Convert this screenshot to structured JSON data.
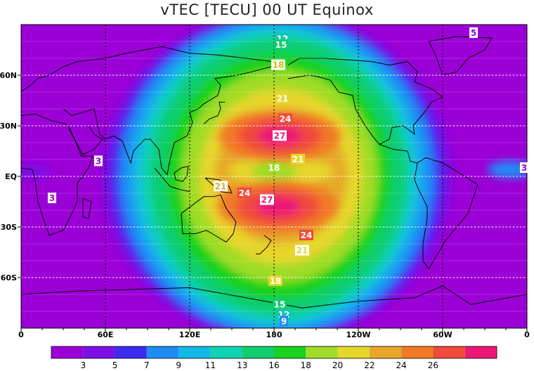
{
  "title": "vTEC [TECU] 00 UT Equinox",
  "axes": {
    "x_ticks": [
      "0",
      "60E",
      "120E",
      "180",
      "120W",
      "60W",
      "0"
    ],
    "y_ticks": [
      "60N",
      "30N",
      "EQ",
      "30S",
      "60S"
    ]
  },
  "colorbar": {
    "colors": [
      "#9b00d6",
      "#7a10e4",
      "#3b2cf0",
      "#1f8cf5",
      "#12b8e6",
      "#10d2b4",
      "#10cd70",
      "#18d21e",
      "#a0dc28",
      "#e6d62c",
      "#e6a82a",
      "#f07a28",
      "#f04a3a",
      "#ec1876"
    ],
    "labels": [
      "3",
      "5",
      "7",
      "9",
      "11",
      "13",
      "16",
      "18",
      "20",
      "22",
      "24",
      "26"
    ]
  },
  "contour_labels": [
    {
      "text": "12",
      "lon": 186,
      "lat": 81.5,
      "bg": "#10c8b0",
      "fg": "#ffffff"
    },
    {
      "text": "15",
      "lon": 185,
      "lat": 78,
      "bg": "#10cd70",
      "fg": "#ffffff"
    },
    {
      "text": "18",
      "lon": 183,
      "lat": 66,
      "bg": "#ffffff",
      "fg": "#c8c000"
    },
    {
      "text": "21",
      "lon": 186,
      "lat": 46,
      "bg": "#e6d62c",
      "fg": "#ffffff"
    },
    {
      "text": "24",
      "lon": 188,
      "lat": 34,
      "bg": "#f04a3a",
      "fg": "#ffffff"
    },
    {
      "text": "27",
      "lon": 184,
      "lat": 24,
      "bg": "#ffffff",
      "fg": "#ec1876"
    },
    {
      "text": "21",
      "lon": 197,
      "lat": 10,
      "bg": "#e6d62c",
      "fg": "#ffffff"
    },
    {
      "text": "18",
      "lon": 180,
      "lat": 5,
      "bg": "#a0dc28",
      "fg": "#ffffff"
    },
    {
      "text": "21",
      "lon": 142,
      "lat": -6,
      "bg": "#ffffff",
      "fg": "#e6a82a"
    },
    {
      "text": "24",
      "lon": 159,
      "lat": -10,
      "bg": "#f04a3a",
      "fg": "#ffffff"
    },
    {
      "text": "27",
      "lon": 175,
      "lat": -14,
      "bg": "#ffffff",
      "fg": "#ec1876"
    },
    {
      "text": "24",
      "lon": 203,
      "lat": -35,
      "bg": "#f04a3a",
      "fg": "#ffffff"
    },
    {
      "text": "21",
      "lon": 200,
      "lat": -44,
      "bg": "#ffffff",
      "fg": "#e6d62c"
    },
    {
      "text": "18",
      "lon": 181,
      "lat": -62,
      "bg": "#e6d62c",
      "fg": "#ffffff"
    },
    {
      "text": "15",
      "lon": 184,
      "lat": -76,
      "bg": "#10cd70",
      "fg": "#ffffff"
    },
    {
      "text": "12",
      "lon": 187,
      "lat": -82,
      "bg": "#10c8b0",
      "fg": "#ffffff"
    },
    {
      "text": "9",
      "lon": 187,
      "lat": -86,
      "bg": "#1f8cf5",
      "fg": "#ffffff"
    },
    {
      "text": "3",
      "lon": 55,
      "lat": 9,
      "bg": "#ffffff",
      "fg": "#9b00d6"
    },
    {
      "text": "3",
      "lon": 22,
      "lat": -13,
      "bg": "#ffffff",
      "fg": "#9b00d6"
    },
    {
      "text": "3",
      "lon": 358,
      "lat": 5,
      "bg": "#ffffff",
      "fg": "#9b00d6"
    },
    {
      "text": "5",
      "lon": 322,
      "lat": 85,
      "bg": "#ffffff",
      "fg": "#7a10e4"
    }
  ]
}
